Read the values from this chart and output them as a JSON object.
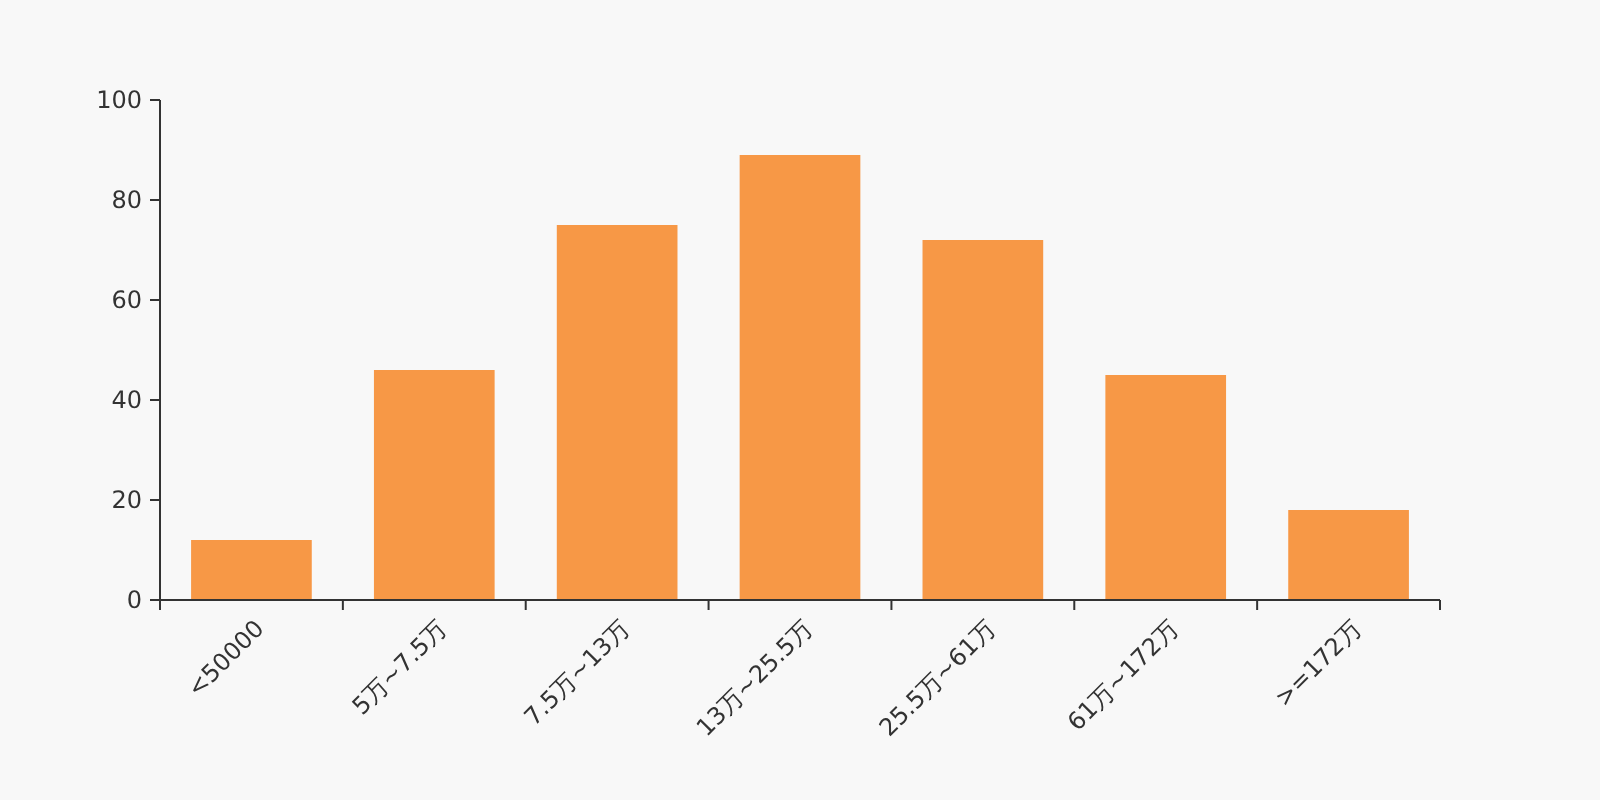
{
  "chart_data": {
    "type": "bar",
    "categories": [
      "<50000",
      "5万~7.5万",
      "7.5万~13万",
      "13万~25.5万",
      "25.5万~61万",
      "61万~172万",
      ">=172万"
    ],
    "values": [
      12,
      46,
      75,
      89,
      72,
      45,
      18
    ],
    "color": "#f79846",
    "ylim": [
      0,
      100
    ],
    "yticks": [
      0,
      20,
      40,
      60,
      80,
      100
    ]
  }
}
